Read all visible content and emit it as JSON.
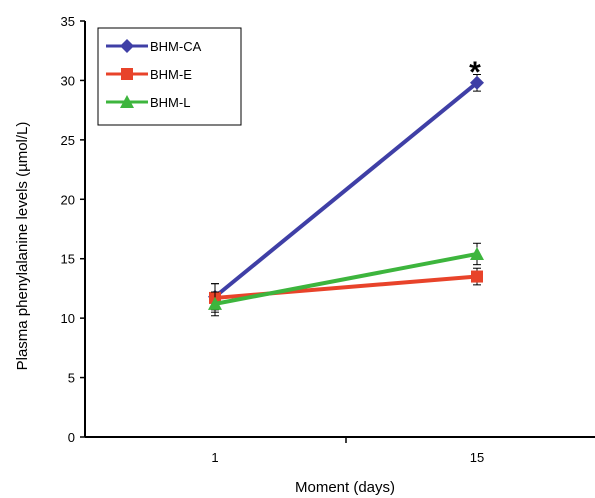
{
  "chart_data": {
    "type": "line",
    "xlabel": "Moment (days)",
    "ylabel": "Plasma phenylalanine levels (µmol/L)",
    "categories": [
      "1",
      "15"
    ],
    "ylim": [
      0,
      35
    ],
    "yticks": [
      "0",
      "5",
      "10",
      "15",
      "20",
      "25",
      "30",
      "35"
    ],
    "grid": false,
    "legend_position": "top-left",
    "annotation": "*",
    "series": [
      {
        "name": "BHM-CA",
        "values": [
          11.8,
          29.8
        ],
        "errors": [
          1.1,
          0.7
        ],
        "color": "#3F3FA6",
        "marker": "diamond"
      },
      {
        "name": "BHM-E",
        "values": [
          11.7,
          13.5
        ],
        "errors": [
          1.2,
          0.7
        ],
        "color": "#E8432A",
        "marker": "square"
      },
      {
        "name": "BHM-L",
        "values": [
          11.2,
          15.4
        ],
        "errors": [
          1.0,
          0.9
        ],
        "color": "#3DB53D",
        "marker": "triangle"
      }
    ]
  }
}
